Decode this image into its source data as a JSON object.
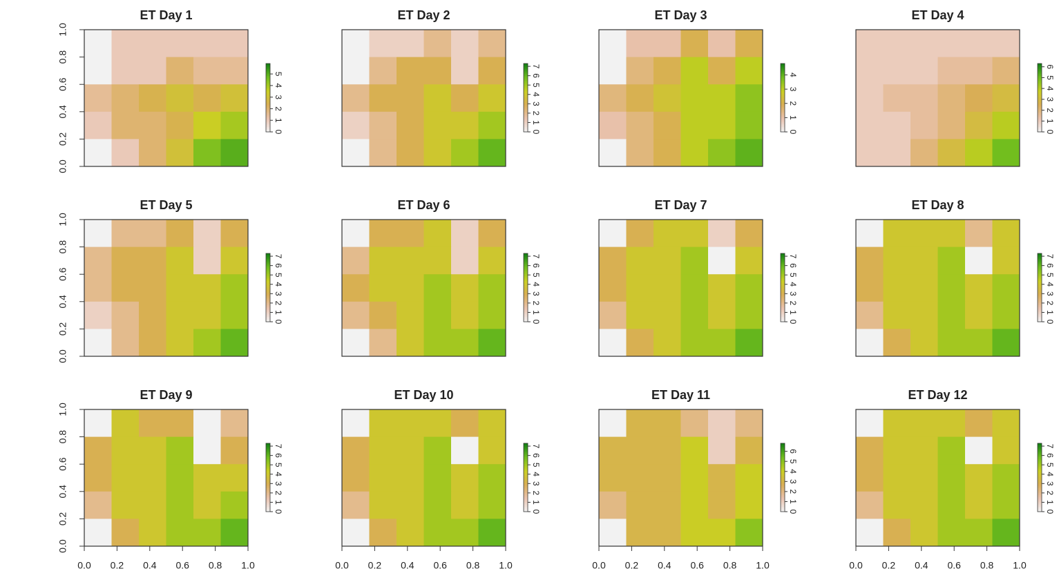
{
  "chart_data": [
    {
      "type": "raster",
      "title": "ET Day 1",
      "xlim": [
        0,
        1
      ],
      "ylim": [
        0,
        1
      ],
      "yticks": [
        {
          "value": 0,
          "label": "0.0"
        },
        {
          "value": 0.2,
          "label": "0.2"
        },
        {
          "value": 0.4,
          "label": "0.4"
        },
        {
          "value": 0.6,
          "label": "0.6"
        },
        {
          "value": 0.8,
          "label": "0.8"
        },
        {
          "value": 1,
          "label": "1.0"
        }
      ],
      "zlim": [
        0,
        5.9
      ],
      "zticks": [
        0,
        1,
        2,
        3,
        4,
        5
      ],
      "colormap": [
        "#f2f2f2",
        "#e9c2ae",
        "#d9ae55",
        "#c9cf22",
        "#6fbd1e",
        "#117e14"
      ],
      "grid": [
        [
          0,
          1,
          1,
          1,
          1,
          1
        ],
        [
          0,
          1,
          1,
          2,
          1.5,
          1.5
        ],
        [
          1.5,
          2,
          2.5,
          3,
          2.5,
          3
        ],
        [
          1,
          2,
          2,
          2.5,
          3.5,
          4
        ],
        [
          0,
          1,
          2,
          3,
          4.5,
          5
        ]
      ]
    },
    {
      "type": "raster",
      "title": "ET Day 2",
      "xlim": [
        0,
        1
      ],
      "ylim": [
        0,
        1
      ],
      "zlim": [
        0,
        7.3
      ],
      "zticks": [
        0,
        1,
        2,
        3,
        4,
        5,
        6,
        7
      ],
      "colormap": [
        "#f2f2f2",
        "#e9c2ae",
        "#d9ae55",
        "#c9cf22",
        "#6fbd1e",
        "#117e14"
      ],
      "grid": [
        [
          0,
          1,
          1,
          2,
          1,
          2
        ],
        [
          0,
          2,
          3,
          3,
          1,
          3
        ],
        [
          2,
          3,
          3,
          4,
          3,
          4
        ],
        [
          1,
          2,
          3,
          4,
          4,
          5
        ],
        [
          0,
          2,
          3,
          4,
          5,
          6
        ]
      ]
    },
    {
      "type": "raster",
      "title": "ET Day 3",
      "xlim": [
        0,
        1
      ],
      "ylim": [
        0,
        1
      ],
      "zlim": [
        0,
        4.8
      ],
      "zticks": [
        0,
        1,
        2,
        3,
        4
      ],
      "colormap": [
        "#f2f2f2",
        "#e9c2ae",
        "#d9ae55",
        "#c9cf22",
        "#6fbd1e",
        "#117e14"
      ],
      "grid": [
        [
          0,
          1,
          1,
          2,
          1,
          2
        ],
        [
          0,
          1.5,
          2,
          3,
          2,
          3
        ],
        [
          1.5,
          2,
          2.5,
          3,
          3,
          3.5
        ],
        [
          1,
          1.5,
          2,
          3,
          3,
          3.5
        ],
        [
          0,
          1.5,
          2,
          3,
          3.5,
          4
        ]
      ]
    },
    {
      "type": "raster",
      "title": "ET Day 4",
      "xlim": [
        0,
        1
      ],
      "ylim": [
        0,
        1
      ],
      "zlim": [
        0,
        6.3
      ],
      "zticks": [
        0,
        1,
        2,
        3,
        4,
        5,
        6
      ],
      "colormap": [
        "#f2f2f2",
        "#e9c2ae",
        "#d9ae55",
        "#c9cf22",
        "#6fbd1e",
        "#117e14"
      ],
      "grid": [
        [
          1,
          1,
          1,
          1,
          1,
          1
        ],
        [
          1,
          1,
          1,
          1.5,
          1.5,
          2
        ],
        [
          1,
          1.5,
          1.5,
          2,
          2.5,
          3
        ],
        [
          1,
          1,
          1.5,
          2,
          3,
          4
        ],
        [
          1,
          1,
          2,
          3,
          4,
          5
        ]
      ]
    },
    {
      "type": "raster",
      "title": "ET Day 5",
      "xlim": [
        0,
        1
      ],
      "ylim": [
        0,
        1
      ],
      "yticks": [
        {
          "value": 0,
          "label": "0.0"
        },
        {
          "value": 0.2,
          "label": "0.2"
        },
        {
          "value": 0.4,
          "label": "0.4"
        },
        {
          "value": 0.6,
          "label": "0.6"
        },
        {
          "value": 0.8,
          "label": "0.8"
        },
        {
          "value": 1,
          "label": "1.0"
        }
      ],
      "zlim": [
        0,
        7.3
      ],
      "zticks": [
        0,
        1,
        2,
        3,
        4,
        5,
        6,
        7
      ],
      "colormap": [
        "#f2f2f2",
        "#e9c2ae",
        "#d9ae55",
        "#c9cf22",
        "#6fbd1e",
        "#117e14"
      ],
      "grid": [
        [
          0,
          2,
          2,
          3,
          1,
          3
        ],
        [
          2,
          3,
          3,
          4,
          1,
          4
        ],
        [
          2,
          3,
          3,
          4,
          4,
          5
        ],
        [
          1,
          2,
          3,
          4,
          4,
          5
        ],
        [
          0,
          2,
          3,
          4,
          5,
          6
        ]
      ]
    },
    {
      "type": "raster",
      "title": "ET Day 6",
      "xlim": [
        0,
        1
      ],
      "ylim": [
        0,
        1
      ],
      "zlim": [
        0,
        7.3
      ],
      "zticks": [
        0,
        1,
        2,
        3,
        4,
        5,
        6,
        7
      ],
      "colormap": [
        "#f2f2f2",
        "#e9c2ae",
        "#d9ae55",
        "#c9cf22",
        "#6fbd1e",
        "#117e14"
      ],
      "grid": [
        [
          0,
          3,
          3,
          4,
          1,
          3
        ],
        [
          2,
          4,
          4,
          4,
          1,
          4
        ],
        [
          3,
          4,
          4,
          5,
          4,
          5
        ],
        [
          2,
          3,
          4,
          5,
          4,
          5
        ],
        [
          0,
          2,
          4,
          5,
          5,
          6
        ]
      ]
    },
    {
      "type": "raster",
      "title": "ET Day 7",
      "xlim": [
        0,
        1
      ],
      "ylim": [
        0,
        1
      ],
      "zlim": [
        0,
        7.3
      ],
      "zticks": [
        0,
        1,
        2,
        3,
        4,
        5,
        6,
        7
      ],
      "colormap": [
        "#f2f2f2",
        "#e9c2ae",
        "#d9ae55",
        "#c9cf22",
        "#6fbd1e",
        "#117e14"
      ],
      "grid": [
        [
          0,
          3,
          4,
          4,
          1,
          3
        ],
        [
          3,
          4,
          4,
          5,
          0,
          4
        ],
        [
          3,
          4,
          4,
          5,
          4,
          5
        ],
        [
          2,
          4,
          4,
          5,
          4,
          5
        ],
        [
          0,
          3,
          4,
          5,
          5,
          6
        ]
      ]
    },
    {
      "type": "raster",
      "title": "ET Day 8",
      "xlim": [
        0,
        1
      ],
      "ylim": [
        0,
        1
      ],
      "zlim": [
        0,
        7.3
      ],
      "zticks": [
        0,
        1,
        2,
        3,
        4,
        5,
        6,
        7
      ],
      "colormap": [
        "#f2f2f2",
        "#e9c2ae",
        "#d9ae55",
        "#c9cf22",
        "#6fbd1e",
        "#117e14"
      ],
      "grid": [
        [
          0,
          4,
          4,
          4,
          2,
          4
        ],
        [
          3,
          4,
          4,
          5,
          0,
          4
        ],
        [
          3,
          4,
          4,
          5,
          4,
          5
        ],
        [
          2,
          4,
          4,
          5,
          4,
          5
        ],
        [
          0,
          3,
          4,
          5,
          5,
          6
        ]
      ]
    },
    {
      "type": "raster",
      "title": "ET Day 9",
      "xlim": [
        0,
        1
      ],
      "ylim": [
        0,
        1
      ],
      "xticks": [
        {
          "value": 0,
          "label": "0.0"
        },
        {
          "value": 0.2,
          "label": "0.2"
        },
        {
          "value": 0.4,
          "label": "0.4"
        },
        {
          "value": 0.6,
          "label": "0.6"
        },
        {
          "value": 0.8,
          "label": "0.8"
        },
        {
          "value": 1,
          "label": "1.0"
        }
      ],
      "yticks": [
        {
          "value": 0,
          "label": "0.0"
        },
        {
          "value": 0.2,
          "label": "0.2"
        },
        {
          "value": 0.4,
          "label": "0.4"
        },
        {
          "value": 0.6,
          "label": "0.6"
        },
        {
          "value": 0.8,
          "label": "0.8"
        },
        {
          "value": 1,
          "label": "1.0"
        }
      ],
      "zlim": [
        0,
        7.3
      ],
      "zticks": [
        0,
        1,
        2,
        3,
        4,
        5,
        6,
        7
      ],
      "colormap": [
        "#f2f2f2",
        "#e9c2ae",
        "#d9ae55",
        "#c9cf22",
        "#6fbd1e",
        "#117e14"
      ],
      "grid": [
        [
          0,
          4,
          3,
          3,
          0,
          2
        ],
        [
          3,
          4,
          4,
          5,
          0,
          3
        ],
        [
          3,
          4,
          4,
          5,
          4,
          4
        ],
        [
          2,
          4,
          4,
          5,
          4,
          5
        ],
        [
          0,
          3,
          4,
          5,
          5,
          6
        ]
      ]
    },
    {
      "type": "raster",
      "title": "ET Day 10",
      "xlim": [
        0,
        1
      ],
      "ylim": [
        0,
        1
      ],
      "xticks": [
        {
          "value": 0,
          "label": "0.0"
        },
        {
          "value": 0.2,
          "label": "0.2"
        },
        {
          "value": 0.4,
          "label": "0.4"
        },
        {
          "value": 0.6,
          "label": "0.6"
        },
        {
          "value": 0.8,
          "label": "0.8"
        },
        {
          "value": 1,
          "label": "1.0"
        }
      ],
      "zlim": [
        0,
        7.3
      ],
      "zticks": [
        0,
        1,
        2,
        3,
        4,
        5,
        6,
        7
      ],
      "colormap": [
        "#f2f2f2",
        "#e9c2ae",
        "#d9ae55",
        "#c9cf22",
        "#6fbd1e",
        "#117e14"
      ],
      "grid": [
        [
          0,
          4,
          4,
          4,
          3,
          4
        ],
        [
          3,
          4,
          4,
          5,
          0,
          4
        ],
        [
          3,
          4,
          4,
          5,
          4,
          5
        ],
        [
          2,
          4,
          4,
          5,
          4,
          5
        ],
        [
          0,
          3,
          4,
          5,
          5,
          6
        ]
      ]
    },
    {
      "type": "raster",
      "title": "ET Day 11",
      "xlim": [
        0,
        1
      ],
      "ylim": [
        0,
        1
      ],
      "xticks": [
        {
          "value": 0,
          "label": "0.0"
        },
        {
          "value": 0.2,
          "label": "0.2"
        },
        {
          "value": 0.4,
          "label": "0.4"
        },
        {
          "value": 0.6,
          "label": "0.6"
        },
        {
          "value": 0.8,
          "label": "0.8"
        },
        {
          "value": 1,
          "label": "1.0"
        }
      ],
      "zlim": [
        0,
        6.8
      ],
      "zticks": [
        0,
        1,
        2,
        3,
        4,
        5,
        6
      ],
      "colormap": [
        "#f2f2f2",
        "#e9c2ae",
        "#d9ae55",
        "#c9cf22",
        "#6fbd1e",
        "#117e14"
      ],
      "grid": [
        [
          0,
          3,
          3,
          2,
          1,
          2
        ],
        [
          3,
          3,
          3,
          4,
          1,
          3
        ],
        [
          3,
          3,
          3,
          4,
          3,
          4
        ],
        [
          2,
          3,
          3,
          4,
          3,
          4
        ],
        [
          0,
          3,
          3,
          4,
          4,
          5
        ]
      ]
    },
    {
      "type": "raster",
      "title": "ET Day 12",
      "xlim": [
        0,
        1
      ],
      "ylim": [
        0,
        1
      ],
      "xticks": [
        {
          "value": 0,
          "label": "0.0"
        },
        {
          "value": 0.2,
          "label": "0.2"
        },
        {
          "value": 0.4,
          "label": "0.4"
        },
        {
          "value": 0.6,
          "label": "0.6"
        },
        {
          "value": 0.8,
          "label": "0.8"
        },
        {
          "value": 1,
          "label": "1.0"
        }
      ],
      "zlim": [
        0,
        7.3
      ],
      "zticks": [
        0,
        1,
        2,
        3,
        4,
        5,
        6,
        7
      ],
      "colormap": [
        "#f2f2f2",
        "#e9c2ae",
        "#d9ae55",
        "#c9cf22",
        "#6fbd1e",
        "#117e14"
      ],
      "grid": [
        [
          0,
          4,
          4,
          4,
          3,
          4
        ],
        [
          3,
          4,
          4,
          5,
          0,
          4
        ],
        [
          3,
          4,
          4,
          5,
          4,
          5
        ],
        [
          2,
          4,
          4,
          5,
          4,
          5
        ],
        [
          0,
          3,
          4,
          5,
          5,
          6
        ]
      ]
    }
  ]
}
